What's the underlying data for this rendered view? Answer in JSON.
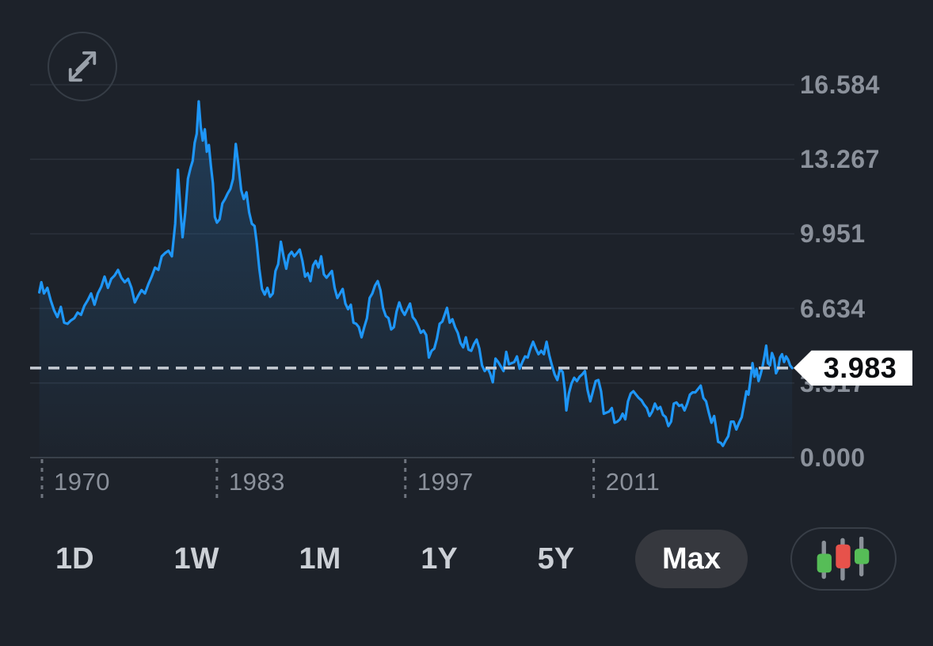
{
  "header": {
    "expand_button": {
      "icon": "expand-arrows-icon"
    }
  },
  "chart_data": {
    "type": "area",
    "description": "Max-range price/yield history line chart with gradient fill",
    "legend": "none",
    "grid": "horizontal",
    "colors": {
      "line": "#1e96f7",
      "fill_top": "rgba(40,125,200,0.30)",
      "fill_bottom": "rgba(40,125,200,0.02)",
      "gridline": "#2b313b",
      "axis_line": "#394049",
      "x_tick_dash": "#6e747e",
      "price_dash": "#c6cbd3",
      "label_gray": "#8b919b",
      "tag_bg": "#ffffff",
      "tag_text": "#0b0d10",
      "background": "#1d222a"
    },
    "y_axis": {
      "min": 0,
      "max": 16.584,
      "ticks": [
        {
          "value": 16.584,
          "label": "16.584"
        },
        {
          "value": 13.267,
          "label": "13.267"
        },
        {
          "value": 9.951,
          "label": "9.951"
        },
        {
          "value": 6.634,
          "label": "6.634"
        },
        {
          "value": 3.317,
          "label": "3.317"
        },
        {
          "value": 0.0,
          "label": "0.000"
        }
      ]
    },
    "x_axis": {
      "ticks": [
        {
          "year": 1970,
          "label": "1970"
        },
        {
          "year": 1983,
          "label": "1983"
        },
        {
          "year": 1997,
          "label": "1997"
        },
        {
          "year": 2011,
          "label": "2011"
        }
      ]
    },
    "current_price": {
      "value": 3.983,
      "label": "3.983"
    },
    "series": [
      {
        "name": "price",
        "points": [
          [
            1969.8,
            7.35
          ],
          [
            1969.95,
            7.8
          ],
          [
            1970.15,
            7.3
          ],
          [
            1970.4,
            7.55
          ],
          [
            1970.65,
            7.0
          ],
          [
            1970.9,
            6.55
          ],
          [
            1971.15,
            6.25
          ],
          [
            1971.4,
            6.7
          ],
          [
            1971.65,
            6.0
          ],
          [
            1971.9,
            5.95
          ],
          [
            1972.15,
            6.1
          ],
          [
            1972.4,
            6.2
          ],
          [
            1972.65,
            6.45
          ],
          [
            1972.9,
            6.35
          ],
          [
            1973.15,
            6.75
          ],
          [
            1973.4,
            7.0
          ],
          [
            1973.65,
            7.3
          ],
          [
            1973.9,
            6.8
          ],
          [
            1974.15,
            7.3
          ],
          [
            1974.4,
            7.6
          ],
          [
            1974.65,
            8.05
          ],
          [
            1974.9,
            7.55
          ],
          [
            1975.15,
            7.95
          ],
          [
            1975.4,
            8.1
          ],
          [
            1975.65,
            8.35
          ],
          [
            1975.9,
            8.0
          ],
          [
            1976.15,
            7.8
          ],
          [
            1976.4,
            7.95
          ],
          [
            1976.65,
            7.55
          ],
          [
            1976.9,
            6.9
          ],
          [
            1977.15,
            7.2
          ],
          [
            1977.4,
            7.45
          ],
          [
            1977.65,
            7.3
          ],
          [
            1977.9,
            7.7
          ],
          [
            1978.15,
            8.05
          ],
          [
            1978.4,
            8.45
          ],
          [
            1978.65,
            8.35
          ],
          [
            1978.9,
            8.95
          ],
          [
            1979.15,
            9.1
          ],
          [
            1979.4,
            9.2
          ],
          [
            1979.65,
            8.95
          ],
          [
            1979.9,
            10.4
          ],
          [
            1980.1,
            12.8
          ],
          [
            1980.3,
            10.9
          ],
          [
            1980.45,
            9.8
          ],
          [
            1980.65,
            10.9
          ],
          [
            1980.85,
            12.4
          ],
          [
            1981.05,
            12.9
          ],
          [
            1981.2,
            13.2
          ],
          [
            1981.35,
            14.0
          ],
          [
            1981.5,
            14.4
          ],
          [
            1981.65,
            15.84
          ],
          [
            1981.8,
            14.7
          ],
          [
            1981.95,
            14.1
          ],
          [
            1982.1,
            14.6
          ],
          [
            1982.25,
            13.6
          ],
          [
            1982.4,
            13.9
          ],
          [
            1982.55,
            13.0
          ],
          [
            1982.7,
            12.2
          ],
          [
            1982.85,
            10.7
          ],
          [
            1983.0,
            10.45
          ],
          [
            1983.2,
            10.6
          ],
          [
            1983.4,
            11.3
          ],
          [
            1983.6,
            11.5
          ],
          [
            1983.8,
            11.75
          ],
          [
            1984.0,
            11.95
          ],
          [
            1984.2,
            12.4
          ],
          [
            1984.4,
            13.95
          ],
          [
            1984.6,
            13.0
          ],
          [
            1984.8,
            11.9
          ],
          [
            1985.0,
            11.5
          ],
          [
            1985.2,
            11.8
          ],
          [
            1985.4,
            10.9
          ],
          [
            1985.6,
            10.4
          ],
          [
            1985.8,
            10.3
          ],
          [
            1985.95,
            9.6
          ],
          [
            1986.15,
            8.4
          ],
          [
            1986.35,
            7.5
          ],
          [
            1986.55,
            7.25
          ],
          [
            1986.75,
            7.55
          ],
          [
            1986.95,
            7.15
          ],
          [
            1987.15,
            7.3
          ],
          [
            1987.35,
            8.3
          ],
          [
            1987.55,
            8.6
          ],
          [
            1987.75,
            9.6
          ],
          [
            1987.95,
            8.95
          ],
          [
            1988.15,
            8.4
          ],
          [
            1988.35,
            9.0
          ],
          [
            1988.55,
            9.15
          ],
          [
            1988.75,
            8.95
          ],
          [
            1988.95,
            9.1
          ],
          [
            1989.15,
            9.25
          ],
          [
            1989.35,
            8.75
          ],
          [
            1989.55,
            8.05
          ],
          [
            1989.75,
            8.2
          ],
          [
            1989.95,
            7.85
          ],
          [
            1990.15,
            8.55
          ],
          [
            1990.35,
            8.75
          ],
          [
            1990.55,
            8.45
          ],
          [
            1990.75,
            8.95
          ],
          [
            1990.95,
            8.15
          ],
          [
            1991.15,
            8.0
          ],
          [
            1991.35,
            8.15
          ],
          [
            1991.55,
            8.3
          ],
          [
            1991.75,
            7.55
          ],
          [
            1991.95,
            7.1
          ],
          [
            1992.15,
            7.3
          ],
          [
            1992.35,
            7.5
          ],
          [
            1992.55,
            6.85
          ],
          [
            1992.75,
            6.6
          ],
          [
            1992.95,
            6.8
          ],
          [
            1993.15,
            6.0
          ],
          [
            1993.35,
            5.95
          ],
          [
            1993.55,
            5.8
          ],
          [
            1993.75,
            5.35
          ],
          [
            1993.95,
            5.8
          ],
          [
            1994.15,
            6.2
          ],
          [
            1994.35,
            7.1
          ],
          [
            1994.55,
            7.3
          ],
          [
            1994.75,
            7.65
          ],
          [
            1994.95,
            7.85
          ],
          [
            1995.15,
            7.45
          ],
          [
            1995.35,
            6.65
          ],
          [
            1995.55,
            6.3
          ],
          [
            1995.75,
            6.2
          ],
          [
            1995.95,
            5.7
          ],
          [
            1996.15,
            5.8
          ],
          [
            1996.35,
            6.5
          ],
          [
            1996.55,
            6.9
          ],
          [
            1996.75,
            6.55
          ],
          [
            1996.95,
            6.35
          ],
          [
            1997.15,
            6.6
          ],
          [
            1997.35,
            6.85
          ],
          [
            1997.55,
            6.25
          ],
          [
            1997.75,
            6.1
          ],
          [
            1997.95,
            5.85
          ],
          [
            1998.15,
            5.55
          ],
          [
            1998.35,
            5.65
          ],
          [
            1998.55,
            5.45
          ],
          [
            1998.75,
            4.45
          ],
          [
            1998.95,
            4.75
          ],
          [
            1999.15,
            4.85
          ],
          [
            1999.35,
            5.3
          ],
          [
            1999.55,
            5.95
          ],
          [
            1999.75,
            6.05
          ],
          [
            1999.95,
            6.4
          ],
          [
            2000.1,
            6.66
          ],
          [
            2000.3,
            6.0
          ],
          [
            2000.5,
            6.15
          ],
          [
            2000.7,
            5.8
          ],
          [
            2000.9,
            5.55
          ],
          [
            2001.1,
            5.1
          ],
          [
            2001.3,
            4.9
          ],
          [
            2001.5,
            5.35
          ],
          [
            2001.7,
            4.8
          ],
          [
            2001.9,
            4.75
          ],
          [
            2002.1,
            5.05
          ],
          [
            2002.3,
            5.25
          ],
          [
            2002.5,
            4.85
          ],
          [
            2002.7,
            4.1
          ],
          [
            2002.9,
            3.85
          ],
          [
            2003.1,
            4.0
          ],
          [
            2003.3,
            3.75
          ],
          [
            2003.5,
            3.35
          ],
          [
            2003.7,
            4.4
          ],
          [
            2003.9,
            4.25
          ],
          [
            2004.1,
            4.05
          ],
          [
            2004.3,
            3.85
          ],
          [
            2004.5,
            4.7
          ],
          [
            2004.7,
            4.15
          ],
          [
            2004.9,
            4.2
          ],
          [
            2005.1,
            4.25
          ],
          [
            2005.3,
            4.5
          ],
          [
            2005.5,
            3.95
          ],
          [
            2005.7,
            4.25
          ],
          [
            2005.9,
            4.5
          ],
          [
            2006.1,
            4.45
          ],
          [
            2006.3,
            4.85
          ],
          [
            2006.5,
            5.15
          ],
          [
            2006.7,
            4.85
          ],
          [
            2006.9,
            4.6
          ],
          [
            2007.1,
            4.75
          ],
          [
            2007.3,
            4.6
          ],
          [
            2007.5,
            5.15
          ],
          [
            2007.7,
            4.55
          ],
          [
            2007.9,
            4.1
          ],
          [
            2008.1,
            3.7
          ],
          [
            2008.3,
            3.45
          ],
          [
            2008.5,
            3.95
          ],
          [
            2008.7,
            3.8
          ],
          [
            2008.85,
            3.0
          ],
          [
            2008.97,
            2.1
          ],
          [
            2009.15,
            2.85
          ],
          [
            2009.35,
            3.3
          ],
          [
            2009.55,
            3.55
          ],
          [
            2009.75,
            3.4
          ],
          [
            2009.95,
            3.6
          ],
          [
            2010.15,
            3.7
          ],
          [
            2010.35,
            3.85
          ],
          [
            2010.55,
            3.0
          ],
          [
            2010.75,
            2.5
          ],
          [
            2010.95,
            2.95
          ],
          [
            2011.15,
            3.4
          ],
          [
            2011.35,
            3.45
          ],
          [
            2011.55,
            2.95
          ],
          [
            2011.75,
            1.95
          ],
          [
            2011.95,
            2.0
          ],
          [
            2012.15,
            2.05
          ],
          [
            2012.35,
            2.2
          ],
          [
            2012.55,
            1.55
          ],
          [
            2012.75,
            1.6
          ],
          [
            2012.95,
            1.7
          ],
          [
            2013.15,
            1.95
          ],
          [
            2013.35,
            1.7
          ],
          [
            2013.55,
            2.5
          ],
          [
            2013.75,
            2.85
          ],
          [
            2013.95,
            2.95
          ],
          [
            2014.15,
            2.8
          ],
          [
            2014.35,
            2.65
          ],
          [
            2014.55,
            2.55
          ],
          [
            2014.75,
            2.35
          ],
          [
            2014.95,
            2.2
          ],
          [
            2015.15,
            1.85
          ],
          [
            2015.35,
            2.05
          ],
          [
            2015.55,
            2.4
          ],
          [
            2015.75,
            2.15
          ],
          [
            2015.95,
            2.25
          ],
          [
            2016.15,
            1.9
          ],
          [
            2016.35,
            1.8
          ],
          [
            2016.55,
            1.4
          ],
          [
            2016.75,
            1.6
          ],
          [
            2016.95,
            2.4
          ],
          [
            2017.15,
            2.45
          ],
          [
            2017.35,
            2.3
          ],
          [
            2017.55,
            2.35
          ],
          [
            2017.75,
            2.1
          ],
          [
            2017.95,
            2.4
          ],
          [
            2018.15,
            2.8
          ],
          [
            2018.35,
            2.9
          ],
          [
            2018.55,
            2.9
          ],
          [
            2018.75,
            3.05
          ],
          [
            2018.95,
            3.2
          ],
          [
            2019.15,
            2.65
          ],
          [
            2019.35,
            2.5
          ],
          [
            2019.55,
            2.0
          ],
          [
            2019.75,
            1.55
          ],
          [
            2019.95,
            1.85
          ],
          [
            2020.1,
            1.3
          ],
          [
            2020.25,
            0.7
          ],
          [
            2020.45,
            0.65
          ],
          [
            2020.6,
            0.52
          ],
          [
            2020.8,
            0.75
          ],
          [
            2021.0,
            0.95
          ],
          [
            2021.2,
            1.6
          ],
          [
            2021.4,
            1.6
          ],
          [
            2021.6,
            1.25
          ],
          [
            2021.8,
            1.55
          ],
          [
            2022.0,
            1.8
          ],
          [
            2022.2,
            2.45
          ],
          [
            2022.35,
            2.95
          ],
          [
            2022.5,
            2.8
          ],
          [
            2022.65,
            3.45
          ],
          [
            2022.8,
            4.2
          ],
          [
            2022.95,
            3.6
          ],
          [
            2023.1,
            3.95
          ],
          [
            2023.25,
            3.4
          ],
          [
            2023.4,
            3.7
          ],
          [
            2023.55,
            4.05
          ],
          [
            2023.7,
            4.55
          ],
          [
            2023.82,
            4.98
          ],
          [
            2023.95,
            4.2
          ],
          [
            2024.1,
            4.1
          ],
          [
            2024.25,
            4.65
          ],
          [
            2024.4,
            4.4
          ],
          [
            2024.55,
            3.75
          ],
          [
            2024.7,
            3.95
          ],
          [
            2024.85,
            4.45
          ],
          [
            2025.0,
            4.6
          ],
          [
            2025.15,
            4.25
          ],
          [
            2025.3,
            4.5
          ],
          [
            2025.45,
            4.35
          ],
          [
            2025.6,
            4.1
          ],
          [
            2025.75,
            3.983
          ]
        ]
      }
    ]
  },
  "toolbar": {
    "ranges": [
      {
        "label": "1D",
        "active": false
      },
      {
        "label": "1W",
        "active": false
      },
      {
        "label": "1M",
        "active": false
      },
      {
        "label": "1Y",
        "active": false
      },
      {
        "label": "5Y",
        "active": false
      },
      {
        "label": "Max",
        "active": true
      }
    ],
    "chart_style_button": {
      "icon": "candlestick-icon",
      "candle_green": "#56bd57",
      "candle_red": "#e7524b",
      "wick_gray": "#8a9098"
    }
  }
}
